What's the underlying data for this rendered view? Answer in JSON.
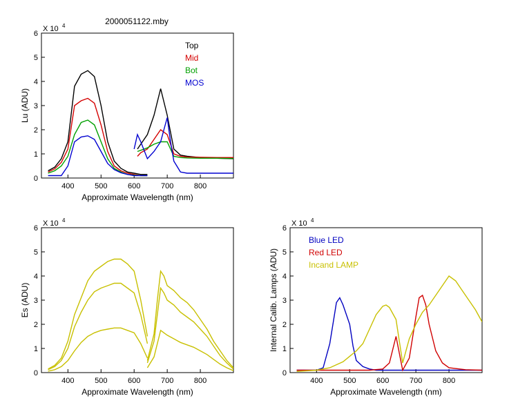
{
  "figure": {
    "title": "2000051122.mby"
  },
  "chart_data": [
    {
      "type": "line",
      "xlabel": "Approximate Wavelength (nm)",
      "ylabel": "Lu (ADU)",
      "ylim": [
        0,
        60000
      ],
      "xlim": [
        320,
        900
      ],
      "scale_label": "X 10",
      "scale_exp": "4",
      "x_ticks": [
        400,
        500,
        600,
        700,
        800
      ],
      "y_ticks": [
        0,
        10000,
        20000,
        30000,
        40000,
        50000,
        60000
      ],
      "y_tick_labels": [
        "0",
        "1",
        "2",
        "3",
        "4",
        "5",
        "6"
      ],
      "legend": "top-right",
      "grid": false,
      "series": [
        {
          "name": "Top",
          "color": "#000000",
          "x": [
            340,
            360,
            380,
            400,
            420,
            440,
            460,
            480,
            500,
            520,
            540,
            560,
            580,
            600,
            620,
            640
          ],
          "y": [
            3000,
            4500,
            8000,
            15000,
            38000,
            43000,
            44500,
            42000,
            30000,
            15000,
            7000,
            4000,
            2500,
            2000,
            1500,
            1500
          ]
        },
        {
          "name": "Top",
          "color": "#000000",
          "x": [
            610,
            620,
            640,
            660,
            680,
            700,
            720,
            740,
            760,
            800,
            850,
            900
          ],
          "y": [
            12000,
            14000,
            18000,
            26000,
            37000,
            26000,
            12000,
            9500,
            9000,
            8500,
            8200,
            8000
          ]
        },
        {
          "name": "Mid",
          "color": "#d40000",
          "x": [
            340,
            360,
            380,
            400,
            420,
            440,
            460,
            480,
            500,
            520,
            540,
            560,
            580,
            600,
            620,
            640
          ],
          "y": [
            2500,
            3800,
            6500,
            12000,
            30000,
            32000,
            33000,
            31000,
            22000,
            11000,
            5000,
            3000,
            2000,
            1500,
            1000,
            1000
          ]
        },
        {
          "name": "Mid",
          "color": "#d40000",
          "x": [
            610,
            620,
            640,
            660,
            680,
            700,
            720,
            740,
            760,
            800,
            850,
            900
          ],
          "y": [
            9000,
            10500,
            12000,
            16000,
            20000,
            18000,
            10000,
            9000,
            8700,
            8600,
            8500,
            8500
          ]
        },
        {
          "name": "Bot",
          "color": "#00a000",
          "x": [
            340,
            360,
            380,
            400,
            420,
            440,
            460,
            480,
            500,
            520,
            540,
            560,
            580,
            600,
            620,
            640
          ],
          "y": [
            2000,
            3000,
            5000,
            9000,
            18000,
            23000,
            24000,
            22000,
            15000,
            8000,
            4000,
            2500,
            1500,
            1200,
            1000,
            1000
          ]
        },
        {
          "name": "Bot",
          "color": "#00a000",
          "x": [
            610,
            620,
            640,
            660,
            680,
            700,
            720,
            740,
            760,
            800,
            850,
            900
          ],
          "y": [
            11000,
            11500,
            12500,
            14000,
            15000,
            15000,
            9000,
            8500,
            8300,
            8200,
            8200,
            8100
          ]
        },
        {
          "name": "MOS",
          "color": "#0000d0",
          "x": [
            340,
            360,
            380,
            400,
            420,
            440,
            460,
            480,
            500,
            520,
            540,
            560,
            580,
            600,
            620,
            640
          ],
          "y": [
            1000,
            1000,
            1000,
            5000,
            15000,
            17000,
            17500,
            16000,
            11000,
            6000,
            3500,
            2200,
            1500,
            1000,
            1000,
            1000
          ]
        },
        {
          "name": "MOS",
          "color": "#0000d0",
          "x": [
            600,
            610,
            620,
            640,
            660,
            680,
            690,
            700,
            710,
            720,
            740,
            760,
            800,
            850,
            900
          ],
          "y": [
            12000,
            18000,
            15000,
            8000,
            11000,
            15000,
            20000,
            25000,
            15000,
            7000,
            2500,
            2000,
            2000,
            2000,
            2000
          ]
        }
      ]
    },
    {
      "type": "line",
      "xlabel": "Approximate Wavelength (nm)",
      "ylabel": "Es (ADU)",
      "ylim": [
        0,
        60000
      ],
      "xlim": [
        320,
        900
      ],
      "scale_label": "X 10",
      "scale_exp": "4",
      "x_ticks": [
        400,
        500,
        600,
        700,
        800
      ],
      "y_ticks": [
        0,
        10000,
        20000,
        30000,
        40000,
        50000,
        60000
      ],
      "y_tick_labels": [
        "0",
        "1",
        "2",
        "3",
        "4",
        "5",
        "6"
      ],
      "grid": false,
      "series": [
        {
          "color": "#c8c000",
          "x": [
            340,
            360,
            380,
            400,
            420,
            440,
            460,
            480,
            500,
            520,
            540,
            560,
            580,
            600,
            620,
            640
          ],
          "y": [
            1500,
            3000,
            6000,
            13000,
            24000,
            31000,
            38000,
            42000,
            44000,
            46000,
            47000,
            47000,
            45000,
            42000,
            30000,
            15000
          ]
        },
        {
          "color": "#c8c000",
          "x": [
            640,
            660,
            670,
            680,
            690,
            700,
            720,
            740,
            760,
            780,
            800,
            820,
            840,
            860,
            880,
            900
          ],
          "y": [
            5000,
            16000,
            30000,
            42000,
            40000,
            36000,
            34000,
            31000,
            29000,
            26000,
            22000,
            18000,
            13000,
            9000,
            5000,
            2000
          ]
        },
        {
          "color": "#c8c000",
          "x": [
            340,
            360,
            380,
            400,
            420,
            440,
            460,
            480,
            500,
            520,
            540,
            560,
            580,
            600,
            620,
            640
          ],
          "y": [
            1200,
            2500,
            5000,
            10000,
            19000,
            25000,
            30000,
            33500,
            35000,
            36000,
            37000,
            37000,
            35000,
            33000,
            24000,
            12000
          ]
        },
        {
          "color": "#c8c000",
          "x": [
            640,
            660,
            670,
            680,
            690,
            700,
            720,
            740,
            760,
            780,
            800,
            820,
            840,
            860,
            880,
            900
          ],
          "y": [
            4000,
            13000,
            24000,
            35000,
            33000,
            30000,
            28000,
            25000,
            23000,
            21000,
            18000,
            15000,
            11000,
            7000,
            4000,
            1500
          ]
        },
        {
          "color": "#c8c000",
          "x": [
            340,
            360,
            380,
            400,
            420,
            440,
            460,
            480,
            500,
            520,
            540,
            560,
            580,
            600,
            620,
            640
          ],
          "y": [
            600,
            1200,
            2500,
            5000,
            9000,
            12500,
            15000,
            16500,
            17500,
            18000,
            18500,
            18500,
            17500,
            16500,
            12000,
            6000
          ]
        },
        {
          "color": "#c8c000",
          "x": [
            640,
            660,
            670,
            680,
            690,
            700,
            720,
            740,
            760,
            780,
            800,
            820,
            840,
            860,
            880,
            900
          ],
          "y": [
            2000,
            6500,
            12000,
            17500,
            16500,
            15500,
            14000,
            12500,
            11500,
            10500,
            9000,
            7500,
            5500,
            3500,
            2000,
            800
          ]
        }
      ]
    },
    {
      "type": "line",
      "xlabel": "Approximate Wavelength (nm)",
      "ylabel": "Internal Calib. Lamps (ADU)",
      "ylim": [
        0,
        60000
      ],
      "xlim": [
        320,
        900
      ],
      "scale_label": "X 10",
      "scale_exp": "4",
      "x_ticks": [
        400,
        500,
        600,
        700,
        800
      ],
      "y_ticks": [
        0,
        10000,
        20000,
        30000,
        40000,
        50000,
        60000
      ],
      "y_tick_labels": [
        "0",
        "1",
        "2",
        "3",
        "4",
        "5",
        "6"
      ],
      "legend": "top-left",
      "grid": false,
      "series": [
        {
          "name": "Blue LED",
          "color": "#0000c0",
          "x": [
            340,
            400,
            420,
            440,
            460,
            470,
            480,
            500,
            510,
            520,
            540,
            560,
            580,
            600,
            650,
            700,
            750,
            800,
            850,
            900
          ],
          "y": [
            1000,
            1000,
            2000,
            12000,
            29000,
            31000,
            28000,
            20000,
            11000,
            5000,
            2500,
            1500,
            1000,
            1000,
            1000,
            1000,
            1000,
            1000,
            1000,
            1000
          ]
        },
        {
          "name": "Red LED",
          "color": "#d00000",
          "x": [
            340,
            500,
            560,
            600,
            620,
            640,
            660,
            680,
            700,
            710,
            720,
            730,
            740,
            760,
            780,
            800,
            850,
            900
          ],
          "y": [
            1000,
            1000,
            1000,
            1500,
            4000,
            15000,
            1000,
            6000,
            23000,
            31000,
            32000,
            28000,
            20000,
            9000,
            4000,
            2000,
            1200,
            1000
          ]
        },
        {
          "name": "Incand LAMP",
          "color": "#c8c000",
          "x": [
            340,
            400,
            440,
            480,
            520,
            540,
            560,
            580,
            600,
            610,
            620,
            640,
            660,
            680,
            700,
            720,
            740,
            760,
            780,
            800,
            820,
            840,
            860,
            880,
            900
          ],
          "y": [
            500,
            1000,
            2000,
            4500,
            9000,
            12000,
            18000,
            24000,
            27500,
            28000,
            27000,
            22000,
            4000,
            14000,
            20000,
            25000,
            28000,
            32000,
            36000,
            40000,
            38000,
            34000,
            30000,
            26000,
            21000
          ]
        }
      ]
    }
  ]
}
